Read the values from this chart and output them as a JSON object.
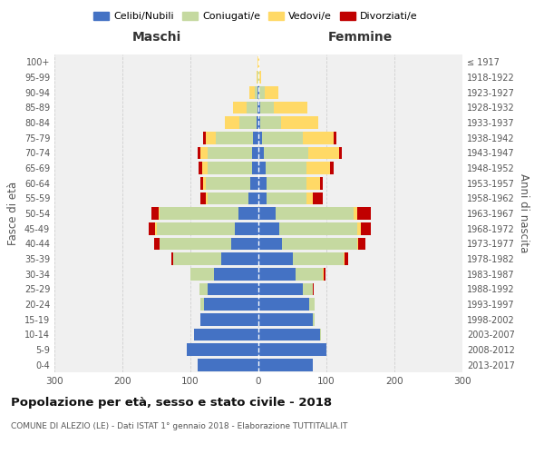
{
  "age_groups": [
    "0-4",
    "5-9",
    "10-14",
    "15-19",
    "20-24",
    "25-29",
    "30-34",
    "35-39",
    "40-44",
    "45-49",
    "50-54",
    "55-59",
    "60-64",
    "65-69",
    "70-74",
    "75-79",
    "80-84",
    "85-89",
    "90-94",
    "95-99",
    "100+"
  ],
  "birth_years": [
    "2013-2017",
    "2008-2012",
    "2003-2007",
    "1998-2002",
    "1993-1997",
    "1988-1992",
    "1983-1987",
    "1978-1982",
    "1973-1977",
    "1968-1972",
    "1963-1967",
    "1958-1962",
    "1953-1957",
    "1948-1952",
    "1943-1947",
    "1938-1942",
    "1933-1937",
    "1928-1932",
    "1923-1927",
    "1918-1922",
    "≤ 1917"
  ],
  "male": {
    "celibe": [
      90,
      105,
      95,
      85,
      80,
      75,
      65,
      55,
      40,
      35,
      30,
      15,
      12,
      10,
      10,
      8,
      3,
      2,
      1,
      0,
      0
    ],
    "coniugato": [
      0,
      0,
      0,
      0,
      5,
      12,
      35,
      70,
      105,
      115,
      115,
      60,
      65,
      65,
      65,
      55,
      25,
      15,
      5,
      1,
      0
    ],
    "vedovo": [
      0,
      0,
      0,
      0,
      0,
      0,
      0,
      1,
      1,
      2,
      2,
      3,
      5,
      8,
      10,
      15,
      22,
      20,
      8,
      2,
      1
    ],
    "divorziato": [
      0,
      0,
      0,
      0,
      0,
      0,
      0,
      2,
      8,
      10,
      10,
      7,
      3,
      5,
      5,
      4,
      0,
      0,
      0,
      0,
      0
    ]
  },
  "female": {
    "nubile": [
      80,
      100,
      90,
      80,
      75,
      65,
      55,
      50,
      35,
      30,
      25,
      12,
      12,
      10,
      8,
      5,
      3,
      2,
      1,
      0,
      0
    ],
    "coniugata": [
      0,
      0,
      2,
      3,
      8,
      15,
      40,
      75,
      110,
      115,
      115,
      58,
      58,
      60,
      65,
      60,
      30,
      20,
      8,
      1,
      0
    ],
    "vedova": [
      0,
      0,
      0,
      0,
      0,
      0,
      1,
      2,
      2,
      5,
      5,
      10,
      20,
      35,
      45,
      45,
      55,
      50,
      20,
      3,
      1
    ],
    "divorziata": [
      0,
      0,
      0,
      0,
      0,
      1,
      2,
      5,
      10,
      15,
      20,
      15,
      5,
      5,
      5,
      5,
      0,
      0,
      0,
      0,
      0
    ]
  },
  "colors": {
    "celibe": "#4472C4",
    "coniugato": "#c5d9a0",
    "vedovo": "#ffd966",
    "divorziato": "#c00000"
  },
  "xlim": 300,
  "title": "Popolazione per età, sesso e stato civile - 2018",
  "subtitle": "COMUNE DI ALEZIO (LE) - Dati ISTAT 1° gennaio 2018 - Elaborazione TUTTITALIA.IT",
  "ylabel_left": "Fasce di età",
  "ylabel_right": "Anni di nascita",
  "xlabel_maschi": "Maschi",
  "xlabel_femmine": "Femmine",
  "bg_color": "#f0f0f0",
  "grid_color": "#cccccc"
}
